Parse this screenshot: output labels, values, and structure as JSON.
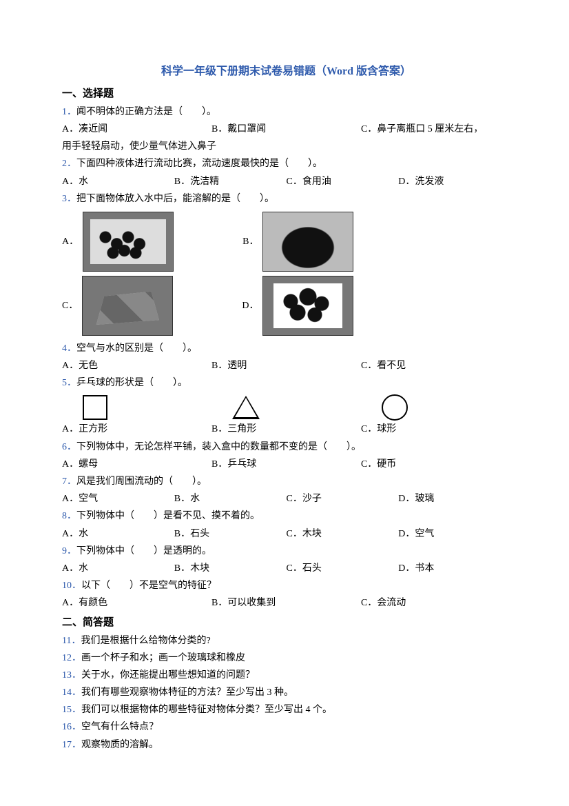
{
  "title": "科学一年级下册期末试卷易错题（Word 版含答案）",
  "section1_header": "一、选择题",
  "q1": {
    "num": "1．",
    "text": "闻不明体的正确方法是（　　）。",
    "A": "A．凑近闻",
    "B": "B．戴口罩闻",
    "C": "C．鼻子离瓶口 5 厘米左右，",
    "tail": "用手轻轻扇动，使少量气体进入鼻子"
  },
  "q2": {
    "num": "2．",
    "text": "下面四种液体进行流动比赛，流动速度最快的是（　　）。",
    "A": "A．水",
    "B": "B．洗洁精",
    "C": "C．食用油",
    "D": "D．洗发液"
  },
  "q3": {
    "num": "3．",
    "text": "把下面物体放入水中后，能溶解的是（　　）。",
    "A": "A．",
    "B": "B．",
    "C": "C．",
    "D": "D．"
  },
  "q4": {
    "num": "4．",
    "text": "空气与水的区别是（　　）。",
    "A": "A．无色",
    "B": "B．透明",
    "C": "C．看不见"
  },
  "q5": {
    "num": "5．",
    "text": "乒乓球的形状是（　　）。",
    "A": "A．正方形",
    "B": "B．三角形",
    "C": "C．球形"
  },
  "q6": {
    "num": "6．",
    "text": "下列物体中，无论怎样平铺，装入盒中的数量都不变的是（　　）。",
    "A": "A．螺母",
    "B": "B．乒乓球",
    "C": "C．硬币"
  },
  "q7": {
    "num": "7．",
    "text": "风是我们周围流动的（　　）。",
    "A": "A．空气",
    "B": "B．水",
    "C": "C．沙子",
    "D": "D．玻璃"
  },
  "q8": {
    "num": "8．",
    "text": "下列物体中（　　）是看不见、摸不着的。",
    "A": "A．水",
    "B": "B．石头",
    "C": "C．木块",
    "D": "D．空气"
  },
  "q9": {
    "num": "9．",
    "text": "下列物体中（　　）是透明的。",
    "A": "A．水",
    "B": "B．木块",
    "C": "C．石头",
    "D": "D．书本"
  },
  "q10": {
    "num": "10．",
    "text": "以下（　　）不是空气的特征？",
    "A": "A．有颜色",
    "B": "B．可以收集到",
    "C": "C．会流动"
  },
  "section2_header": "二、简答题",
  "sa": {
    "q11": {
      "num": "11．",
      "text": "我们是根据什么给物体分类的?"
    },
    "q12": {
      "num": "12．",
      "text": "画一个杯子和水；画一个玻璃球和橡皮"
    },
    "q13": {
      "num": "13．",
      "text": "关于水，你还能提出哪些想知道的问题？"
    },
    "q14": {
      "num": "14．",
      "text": "我们有哪些观察物体特征的方法？至少写出 3 种。"
    },
    "q15": {
      "num": "15．",
      "text": "我们可以根据物体的哪些特征对物体分类？至少写出 4 个。"
    },
    "q16": {
      "num": "16．",
      "text": "空气有什么特点？"
    },
    "q17": {
      "num": "17．",
      "text": "观察物质的溶解。"
    }
  }
}
